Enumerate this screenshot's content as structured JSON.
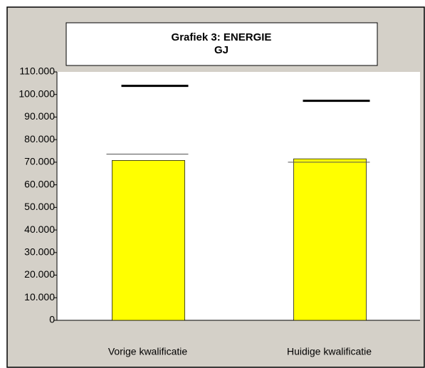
{
  "chart_data": {
    "type": "bar",
    "title": "Grafiek 3: ENERGIE",
    "subtitle": "GJ",
    "categories": [
      "Vorige kwalificatie",
      "Huidige kwalificatie"
    ],
    "series": [
      {
        "style": "bar",
        "color": "#ffff00",
        "values": [
          70800,
          71500
        ]
      },
      {
        "style": "thick-line",
        "color": "#000000",
        "values": [
          103800,
          97200
        ]
      },
      {
        "style": "thin-line",
        "color": "#555555",
        "values": [
          73600,
          70000
        ]
      }
    ],
    "ylim": [
      0,
      110000
    ],
    "yticks": [
      0,
      {
        "value": 10000,
        "label": "10.000"
      },
      {
        "value": 20000,
        "label": "20.000"
      },
      {
        "value": 30000,
        "label": "30.000"
      },
      {
        "value": 40000,
        "label": "40.000"
      },
      {
        "value": 50000,
        "label": "50.000"
      },
      {
        "value": 60000,
        "label": "60.000"
      },
      {
        "value": 70000,
        "label": "70.000"
      },
      {
        "value": 80000,
        "label": "80.000"
      },
      {
        "value": 90000,
        "label": "90.000"
      },
      {
        "value": 100000,
        "label": "100.000"
      },
      {
        "value": 110000,
        "label": "110.000"
      }
    ]
  }
}
